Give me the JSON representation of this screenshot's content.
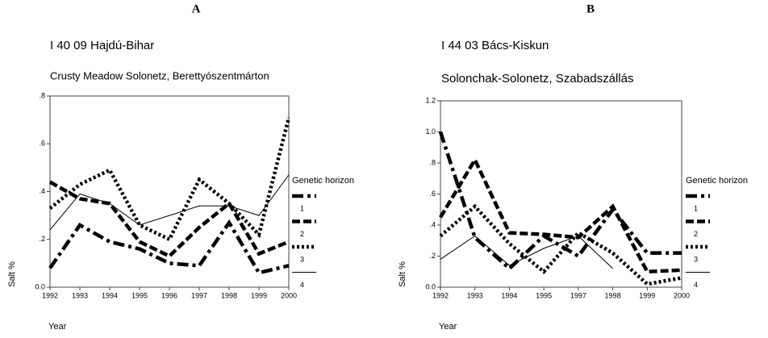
{
  "chart_data": [
    {
      "type": "line",
      "panel": "A",
      "title": "I 40 09 Hajdú-Bihar",
      "subtitle": "Crusty Meadow Solonetz, Berettyószentmárton",
      "xlabel": "Year",
      "ylabel": "Salt %",
      "legend_title": "Genetic horizon",
      "categories": [
        "1992",
        "1993",
        "1994",
        "1995",
        "1996",
        "1997",
        "1998",
        "1999",
        "2000"
      ],
      "ylim": [
        0,
        0.8
      ],
      "yticks": [
        {
          "value": 0,
          "label": "0.0"
        },
        {
          "value": 0.2,
          "label": ".2"
        },
        {
          "value": 0.4,
          "label": ".4"
        },
        {
          "value": 0.6,
          "label": ".6"
        },
        {
          "value": 0.8,
          "label": ".8"
        }
      ],
      "series": [
        {
          "name": "1",
          "color": "#000000",
          "line_style": "dash-dot",
          "values": [
            0.08,
            0.26,
            0.19,
            0.16,
            0.1,
            0.09,
            0.27,
            0.06,
            0.09
          ]
        },
        {
          "name": "2",
          "color": "#000000",
          "line_style": "dashed",
          "values": [
            0.44,
            0.37,
            0.35,
            0.19,
            0.13,
            0.25,
            0.35,
            0.14,
            0.19
          ]
        },
        {
          "name": "3",
          "color": "#000000",
          "line_style": "dotted",
          "values": [
            0.33,
            0.43,
            0.49,
            0.26,
            0.2,
            0.45,
            0.35,
            0.22,
            0.71
          ]
        },
        {
          "name": "4",
          "color": "#000000",
          "line_style": "thin",
          "values": [
            0.24,
            0.39,
            0.35,
            0.26,
            0.3,
            0.34,
            0.34,
            0.3,
            0.47
          ]
        }
      ]
    },
    {
      "type": "line",
      "panel": "B",
      "title": "I 44 03 Bács-Kiskun",
      "subtitle": "Solonchak-Solonetz, Szabadszállás",
      "xlabel": "Year",
      "ylabel": "Salt %",
      "legend_title": "Genetic horizon",
      "categories": [
        "1992",
        "1993",
        "1994",
        "1995",
        "1997",
        "1998",
        "1999",
        "2000"
      ],
      "ylim": [
        0,
        1.2
      ],
      "yticks": [
        {
          "value": 0,
          "label": "0.0"
        },
        {
          "value": 0.2,
          "label": ".2"
        },
        {
          "value": 0.4,
          "label": ".4"
        },
        {
          "value": 0.6,
          "label": ".6"
        },
        {
          "value": 0.8,
          "label": ".8"
        },
        {
          "value": 1.0,
          "label": "1.0"
        },
        {
          "value": 1.2,
          "label": "1.2"
        }
      ],
      "series": [
        {
          "name": "1",
          "color": "#000000",
          "line_style": "dash-dot",
          "values": [
            1.0,
            0.32,
            0.12,
            0.33,
            0.2,
            0.5,
            0.22,
            0.22
          ]
        },
        {
          "name": "2",
          "color": "#000000",
          "line_style": "dashed",
          "values": [
            0.45,
            0.82,
            0.35,
            0.34,
            0.32,
            0.52,
            0.1,
            0.11
          ]
        },
        {
          "name": "3",
          "color": "#000000",
          "line_style": "dotted",
          "values": [
            0.33,
            0.52,
            0.28,
            0.1,
            0.35,
            0.22,
            0.02,
            0.06
          ]
        },
        {
          "name": "4",
          "color": "#000000",
          "line_style": "thin",
          "values": [
            0.18,
            0.33,
            0.14,
            0.25,
            0.33,
            0.12,
            null,
            null
          ]
        }
      ]
    }
  ]
}
